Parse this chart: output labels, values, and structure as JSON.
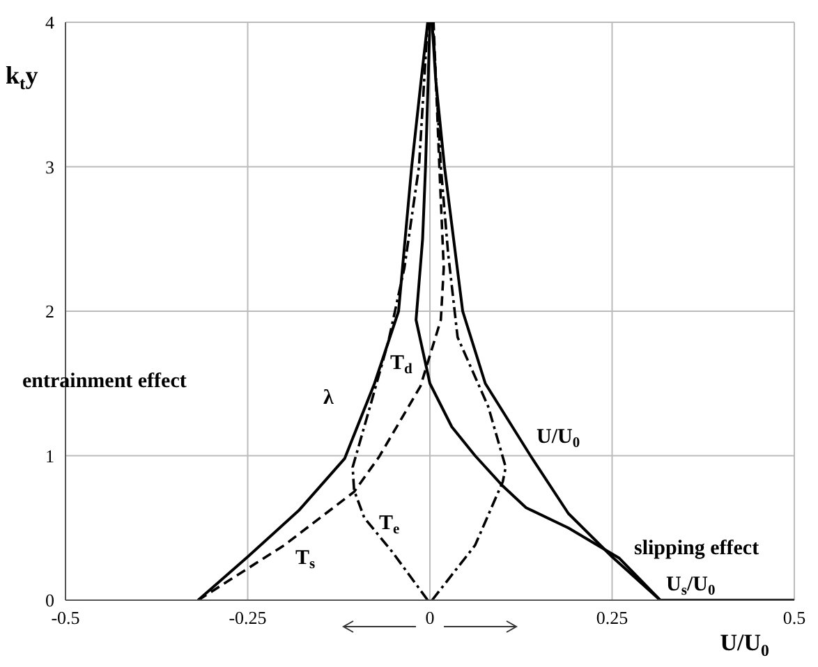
{
  "chart_data": {
    "type": "line",
    "xlabel": "U/U$_{0}$",
    "ylabel": "k$_{t}$y",
    "xlim": [
      -0.5,
      0.5
    ],
    "xticks": [
      -0.5,
      -0.25,
      0,
      0.25,
      0.5
    ],
    "ylim": [
      0,
      4
    ],
    "yticks": [
      0,
      1,
      2,
      3,
      4
    ],
    "grid": true,
    "marker": "none",
    "series": [
      {
        "color": "#000000",
        "line_style": "solid",
        "x": [
          -0.318,
          -0.25,
          -0.18,
          -0.117,
          -0.076,
          -0.043,
          -0.025,
          -0.012,
          -0.003
        ],
        "values": [
          0,
          0.3,
          0.62,
          0.98,
          1.5,
          2,
          3,
          3.6,
          4
        ]
      },
      {
        "color": "#000000",
        "line_style": "solid",
        "x": [
          0.5,
          0.316,
          0.25,
          0.19,
          0.138,
          0.076,
          0.045,
          0.02,
          0.008,
          0.003
        ],
        "values": [
          0,
          0,
          0.3,
          0.6,
          1,
          1.5,
          2,
          3,
          3.6,
          4
        ]
      },
      {
        "color": "#000000",
        "line_style": "solid",
        "x": [
          0.316,
          0.26,
          0.19,
          0.132,
          0.1,
          0.062,
          0.03,
          0,
          -0.019,
          -0.01,
          -0.006,
          0
        ],
        "values": [
          0,
          0.29,
          0.5,
          0.64,
          0.79,
          1,
          1.2,
          1.5,
          1.94,
          2.5,
          3,
          4
        ]
      },
      {
        "color": "#000000",
        "line_style": "dashed",
        "x": [
          -0.318,
          -0.2,
          -0.104,
          -0.07,
          -0.013,
          0.015,
          0.019,
          0.013,
          0.005
        ],
        "values": [
          0,
          0.38,
          0.75,
          0.99,
          1.48,
          1.94,
          2.3,
          3,
          4
        ]
      },
      {
        "color": "#000000",
        "line_style": "dashdot",
        "x": [
          -0.003,
          -0.051,
          -0.09,
          -0.104,
          -0.106,
          -0.081,
          -0.057,
          -0.035,
          -0.015,
          -0.003
        ],
        "values": [
          0,
          0.33,
          0.57,
          0.76,
          0.92,
          1.36,
          1.79,
          2.3,
          3,
          4
        ]
      },
      {
        "color": "#000000",
        "line_style": "dashdot",
        "x": [
          0.003,
          0.062,
          0.1,
          0.104,
          0.08,
          0.038,
          0.025,
          0.015,
          0.004
        ],
        "values": [
          0,
          0.38,
          0.82,
          0.92,
          1.34,
          1.82,
          2.4,
          3,
          4
        ]
      }
    ],
    "annotations": [
      "λ",
      "T$_{d}$",
      "T$_{e}$",
      "T$_{s}$",
      "U/U$_{0}$",
      "U$_{s}$/U$_{0}$",
      "entrainment effect",
      "slipping effect"
    ]
  }
}
